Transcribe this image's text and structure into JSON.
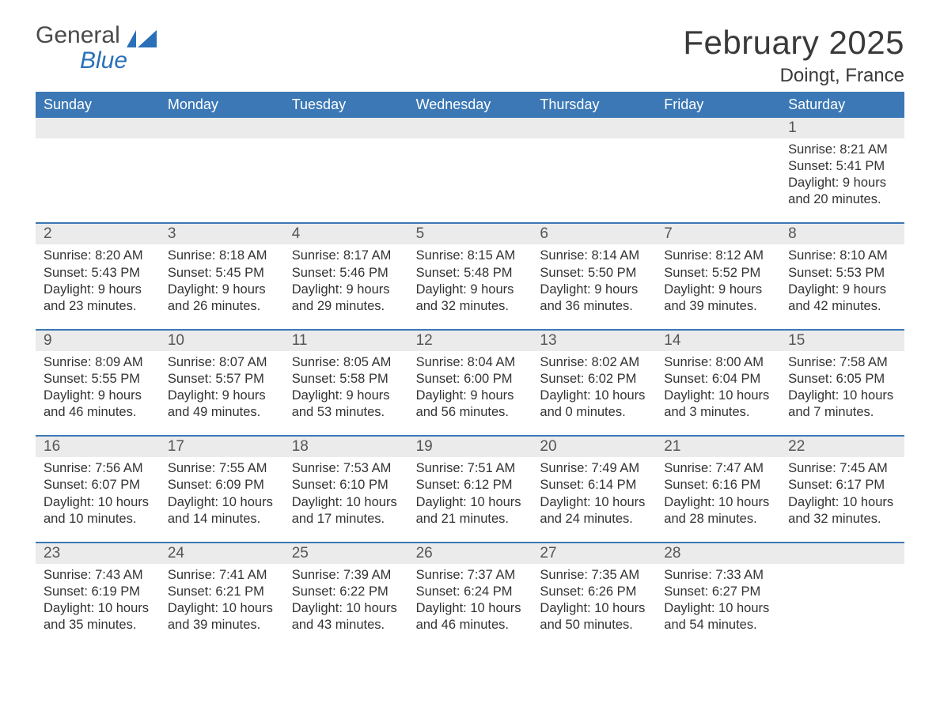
{
  "brand": {
    "text1": "General",
    "text2": "Blue",
    "color_general": "#4a4a4a",
    "color_blue": "#2a70b8",
    "shape_color": "#2a70b8"
  },
  "header": {
    "month_title": "February 2025",
    "location": "Doingt, France",
    "title_color": "#3a3a3a",
    "title_fontsize": 42,
    "location_fontsize": 24
  },
  "styling": {
    "header_row_bg": "#3b78b5",
    "header_row_fg": "#ffffff",
    "daybar_bg": "#ebebeb",
    "daybar_fg": "#555555",
    "row_divider_color": "#3b78b5",
    "body_text_color": "#333333",
    "body_fontsize": 16.5,
    "weekday_fontsize": 18,
    "daynum_fontsize": 19,
    "page_bg": "#ffffff",
    "columns": 7
  },
  "weekdays": [
    "Sunday",
    "Monday",
    "Tuesday",
    "Wednesday",
    "Thursday",
    "Friday",
    "Saturday"
  ],
  "weeks": [
    [
      {
        "day": "",
        "sunrise": "",
        "sunset": "",
        "daylight1": "",
        "daylight2": ""
      },
      {
        "day": "",
        "sunrise": "",
        "sunset": "",
        "daylight1": "",
        "daylight2": ""
      },
      {
        "day": "",
        "sunrise": "",
        "sunset": "",
        "daylight1": "",
        "daylight2": ""
      },
      {
        "day": "",
        "sunrise": "",
        "sunset": "",
        "daylight1": "",
        "daylight2": ""
      },
      {
        "day": "",
        "sunrise": "",
        "sunset": "",
        "daylight1": "",
        "daylight2": ""
      },
      {
        "day": "",
        "sunrise": "",
        "sunset": "",
        "daylight1": "",
        "daylight2": ""
      },
      {
        "day": "1",
        "sunrise": "Sunrise: 8:21 AM",
        "sunset": "Sunset: 5:41 PM",
        "daylight1": "Daylight: 9 hours",
        "daylight2": "and 20 minutes."
      }
    ],
    [
      {
        "day": "2",
        "sunrise": "Sunrise: 8:20 AM",
        "sunset": "Sunset: 5:43 PM",
        "daylight1": "Daylight: 9 hours",
        "daylight2": "and 23 minutes."
      },
      {
        "day": "3",
        "sunrise": "Sunrise: 8:18 AM",
        "sunset": "Sunset: 5:45 PM",
        "daylight1": "Daylight: 9 hours",
        "daylight2": "and 26 minutes."
      },
      {
        "day": "4",
        "sunrise": "Sunrise: 8:17 AM",
        "sunset": "Sunset: 5:46 PM",
        "daylight1": "Daylight: 9 hours",
        "daylight2": "and 29 minutes."
      },
      {
        "day": "5",
        "sunrise": "Sunrise: 8:15 AM",
        "sunset": "Sunset: 5:48 PM",
        "daylight1": "Daylight: 9 hours",
        "daylight2": "and 32 minutes."
      },
      {
        "day": "6",
        "sunrise": "Sunrise: 8:14 AM",
        "sunset": "Sunset: 5:50 PM",
        "daylight1": "Daylight: 9 hours",
        "daylight2": "and 36 minutes."
      },
      {
        "day": "7",
        "sunrise": "Sunrise: 8:12 AM",
        "sunset": "Sunset: 5:52 PM",
        "daylight1": "Daylight: 9 hours",
        "daylight2": "and 39 minutes."
      },
      {
        "day": "8",
        "sunrise": "Sunrise: 8:10 AM",
        "sunset": "Sunset: 5:53 PM",
        "daylight1": "Daylight: 9 hours",
        "daylight2": "and 42 minutes."
      }
    ],
    [
      {
        "day": "9",
        "sunrise": "Sunrise: 8:09 AM",
        "sunset": "Sunset: 5:55 PM",
        "daylight1": "Daylight: 9 hours",
        "daylight2": "and 46 minutes."
      },
      {
        "day": "10",
        "sunrise": "Sunrise: 8:07 AM",
        "sunset": "Sunset: 5:57 PM",
        "daylight1": "Daylight: 9 hours",
        "daylight2": "and 49 minutes."
      },
      {
        "day": "11",
        "sunrise": "Sunrise: 8:05 AM",
        "sunset": "Sunset: 5:58 PM",
        "daylight1": "Daylight: 9 hours",
        "daylight2": "and 53 minutes."
      },
      {
        "day": "12",
        "sunrise": "Sunrise: 8:04 AM",
        "sunset": "Sunset: 6:00 PM",
        "daylight1": "Daylight: 9 hours",
        "daylight2": "and 56 minutes."
      },
      {
        "day": "13",
        "sunrise": "Sunrise: 8:02 AM",
        "sunset": "Sunset: 6:02 PM",
        "daylight1": "Daylight: 10 hours",
        "daylight2": "and 0 minutes."
      },
      {
        "day": "14",
        "sunrise": "Sunrise: 8:00 AM",
        "sunset": "Sunset: 6:04 PM",
        "daylight1": "Daylight: 10 hours",
        "daylight2": "and 3 minutes."
      },
      {
        "day": "15",
        "sunrise": "Sunrise: 7:58 AM",
        "sunset": "Sunset: 6:05 PM",
        "daylight1": "Daylight: 10 hours",
        "daylight2": "and 7 minutes."
      }
    ],
    [
      {
        "day": "16",
        "sunrise": "Sunrise: 7:56 AM",
        "sunset": "Sunset: 6:07 PM",
        "daylight1": "Daylight: 10 hours",
        "daylight2": "and 10 minutes."
      },
      {
        "day": "17",
        "sunrise": "Sunrise: 7:55 AM",
        "sunset": "Sunset: 6:09 PM",
        "daylight1": "Daylight: 10 hours",
        "daylight2": "and 14 minutes."
      },
      {
        "day": "18",
        "sunrise": "Sunrise: 7:53 AM",
        "sunset": "Sunset: 6:10 PM",
        "daylight1": "Daylight: 10 hours",
        "daylight2": "and 17 minutes."
      },
      {
        "day": "19",
        "sunrise": "Sunrise: 7:51 AM",
        "sunset": "Sunset: 6:12 PM",
        "daylight1": "Daylight: 10 hours",
        "daylight2": "and 21 minutes."
      },
      {
        "day": "20",
        "sunrise": "Sunrise: 7:49 AM",
        "sunset": "Sunset: 6:14 PM",
        "daylight1": "Daylight: 10 hours",
        "daylight2": "and 24 minutes."
      },
      {
        "day": "21",
        "sunrise": "Sunrise: 7:47 AM",
        "sunset": "Sunset: 6:16 PM",
        "daylight1": "Daylight: 10 hours",
        "daylight2": "and 28 minutes."
      },
      {
        "day": "22",
        "sunrise": "Sunrise: 7:45 AM",
        "sunset": "Sunset: 6:17 PM",
        "daylight1": "Daylight: 10 hours",
        "daylight2": "and 32 minutes."
      }
    ],
    [
      {
        "day": "23",
        "sunrise": "Sunrise: 7:43 AM",
        "sunset": "Sunset: 6:19 PM",
        "daylight1": "Daylight: 10 hours",
        "daylight2": "and 35 minutes."
      },
      {
        "day": "24",
        "sunrise": "Sunrise: 7:41 AM",
        "sunset": "Sunset: 6:21 PM",
        "daylight1": "Daylight: 10 hours",
        "daylight2": "and 39 minutes."
      },
      {
        "day": "25",
        "sunrise": "Sunrise: 7:39 AM",
        "sunset": "Sunset: 6:22 PM",
        "daylight1": "Daylight: 10 hours",
        "daylight2": "and 43 minutes."
      },
      {
        "day": "26",
        "sunrise": "Sunrise: 7:37 AM",
        "sunset": "Sunset: 6:24 PM",
        "daylight1": "Daylight: 10 hours",
        "daylight2": "and 46 minutes."
      },
      {
        "day": "27",
        "sunrise": "Sunrise: 7:35 AM",
        "sunset": "Sunset: 6:26 PM",
        "daylight1": "Daylight: 10 hours",
        "daylight2": "and 50 minutes."
      },
      {
        "day": "28",
        "sunrise": "Sunrise: 7:33 AM",
        "sunset": "Sunset: 6:27 PM",
        "daylight1": "Daylight: 10 hours",
        "daylight2": "and 54 minutes."
      },
      {
        "day": "",
        "sunrise": "",
        "sunset": "",
        "daylight1": "",
        "daylight2": ""
      }
    ]
  ]
}
